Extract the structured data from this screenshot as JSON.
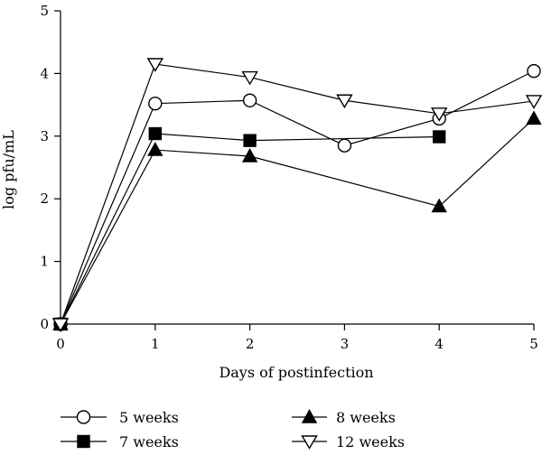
{
  "chart_data": {
    "type": "line",
    "xlabel": "Days of postinfection",
    "ylabel": "log pfu/mL",
    "x_ticks": [
      0,
      1,
      2,
      3,
      4,
      5
    ],
    "y_ticks": [
      0,
      1,
      2,
      3,
      4,
      5
    ],
    "xlim": [
      0,
      5
    ],
    "ylim": [
      0,
      5
    ],
    "grid": false,
    "legend_position": "bottom",
    "series": [
      {
        "name": "5 weeks",
        "marker": "circle-open",
        "x": [
          0,
          1,
          2,
          3,
          4,
          5
        ],
        "values": [
          0,
          3.52,
          3.57,
          2.85,
          3.28,
          4.04
        ]
      },
      {
        "name": "7 weeks",
        "marker": "square-filled",
        "x": [
          0,
          1,
          2,
          4
        ],
        "values": [
          0,
          3.04,
          2.93,
          2.99
        ]
      },
      {
        "name": "8 weeks",
        "marker": "triangle-up-filled",
        "x": [
          0,
          1,
          2,
          4,
          5
        ],
        "values": [
          0,
          2.78,
          2.68,
          1.88,
          3.28
        ]
      },
      {
        "name": "12 weeks",
        "marker": "triangle-down-open",
        "x": [
          0,
          1,
          2,
          3,
          4,
          5
        ],
        "values": [
          0,
          4.15,
          3.94,
          3.57,
          3.36,
          3.56
        ]
      }
    ]
  }
}
